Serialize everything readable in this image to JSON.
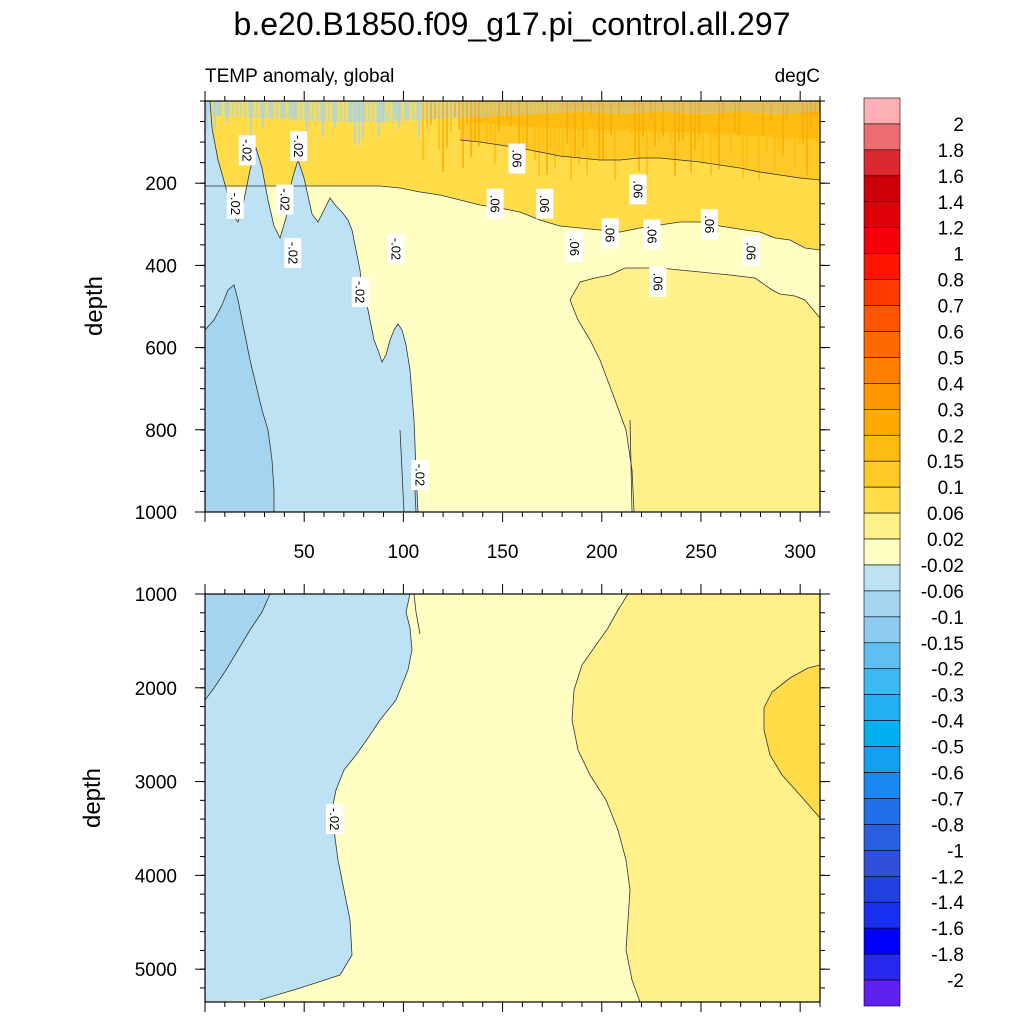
{
  "chart_data": [
    {
      "type": "contour",
      "panel": "upper",
      "title": "b.e20.B1850.f09_g17.pi_control.all.297",
      "left_subtitle": "TEMP anomaly, global",
      "right_subtitle": "degC",
      "ylabel": "depth",
      "xlim": [
        0,
        310
      ],
      "ylim": [
        0,
        1000
      ],
      "y_reversed": true,
      "x_ticks": [
        50,
        100,
        150,
        200,
        250,
        300
      ],
      "x_tick_labels": [
        "50",
        "100",
        "150",
        "200",
        "250",
        "300"
      ],
      "y_ticks": [
        200,
        400,
        600,
        800,
        1000
      ],
      "y_tick_labels": [
        "200",
        "400",
        "600",
        "800",
        "1000"
      ],
      "contour_labels": [
        {
          "text": "-.02",
          "x": 21,
          "y": 120
        },
        {
          "text": "-.02",
          "x": 47,
          "y": 110
        },
        {
          "text": "-.02",
          "x": 15,
          "y": 250
        },
        {
          "text": "-.02",
          "x": 40,
          "y": 240
        },
        {
          "text": "-.02",
          "x": 44,
          "y": 370
        },
        {
          "text": "-.02",
          "x": 78,
          "y": 465
        },
        {
          "text": "-.02",
          "x": 96,
          "y": 360
        },
        {
          "text": "-.02",
          "x": 108,
          "y": 910
        },
        {
          "text": ".06",
          "x": 157,
          "y": 140
        },
        {
          "text": ".06",
          "x": 146,
          "y": 250
        },
        {
          "text": ".06",
          "x": 171,
          "y": 250
        },
        {
          "text": ".06",
          "x": 186,
          "y": 355
        },
        {
          "text": ".06",
          "x": 204,
          "y": 322
        },
        {
          "text": ".06",
          "x": 218,
          "y": 215
        },
        {
          "text": ".06",
          "x": 225,
          "y": 325
        },
        {
          "text": ".06",
          "x": 228,
          "y": 440
        },
        {
          "text": ".06",
          "x": 254,
          "y": 300
        },
        {
          "text": ".06",
          "x": 275,
          "y": 365
        }
      ],
      "regions": [
        {
          "level": "-0.02 to 0.02",
          "x_range": [
            100,
            215
          ],
          "depth_range": [
            400,
            1000
          ]
        },
        {
          "level": "0.02 to 0.06",
          "x_range": [
            215,
            310
          ],
          "depth_range": [
            450,
            1000
          ]
        },
        {
          "level": "-0.06 to -0.02",
          "x_range": [
            0,
            100
          ],
          "depth_range": [
            250,
            1000
          ]
        },
        {
          "level": "-0.1 to -0.06",
          "x_range": [
            0,
            35
          ],
          "depth_range": [
            480,
            1000
          ]
        }
      ]
    },
    {
      "type": "contour",
      "panel": "lower",
      "ylabel": "depth",
      "xlim": [
        0,
        310
      ],
      "ylim": [
        1000,
        5350
      ],
      "y_reversed": true,
      "y_ticks": [
        1000,
        2000,
        3000,
        4000,
        5000
      ],
      "y_tick_labels": [
        "1000",
        "2000",
        "3000",
        "4000",
        "5000"
      ],
      "contour_labels": [
        {
          "text": "-.02",
          "x": 65,
          "y": 3400
        }
      ],
      "regions": [
        {
          "level": "-0.06 to -0.02",
          "x_range": [
            0,
            105
          ],
          "depth_range": [
            1000,
            5350
          ]
        },
        {
          "level": "-0.02 to 0.02",
          "x_range": [
            73,
            215
          ],
          "depth_range": [
            1000,
            5350
          ]
        },
        {
          "level": "0.02 to 0.06",
          "x_range": [
            180,
            310
          ],
          "depth_range": [
            1000,
            5350
          ]
        },
        {
          "level": "0.06 to 0.1",
          "x_range": [
            280,
            310
          ],
          "depth_range": [
            1800,
            3400
          ]
        },
        {
          "level": "-0.1 to -0.06",
          "x_range": [
            0,
            30
          ],
          "depth_range": [
            1000,
            2150
          ]
        }
      ]
    }
  ],
  "colorbar": {
    "labels": [
      "2",
      "1.8",
      "1.6",
      "1.4",
      "1.2",
      "1",
      "0.8",
      "0.7",
      "0.6",
      "0.5",
      "0.4",
      "0.3",
      "0.2",
      "0.15",
      "0.1",
      "0.06",
      "0.02",
      "-0.02",
      "-0.06",
      "-0.1",
      "-0.15",
      "-0.2",
      "-0.3",
      "-0.4",
      "-0.5",
      "-0.6",
      "-0.7",
      "-0.8",
      "-1",
      "-1.2",
      "-1.4",
      "-1.6",
      "-1.8",
      "-2"
    ],
    "colors": [
      "#ffb0b4",
      "#ec6e72",
      "#da2a30",
      "#cc0008",
      "#e00008",
      "#f40008",
      "#ff1400",
      "#ff3a00",
      "#ff5400",
      "#ff6a00",
      "#ff8000",
      "#ff9800",
      "#ffaa00",
      "#ffbc10",
      "#ffca28",
      "#ffdc48",
      "#fff08a",
      "#ffffc4",
      "#bde2f4",
      "#a4d4ef",
      "#8ecbf0",
      "#60bef0",
      "#3db8f0",
      "#22b0f0",
      "#00b0f0",
      "#14a0f0",
      "#1a88f0",
      "#2070e8",
      "#2a60e0",
      "#3050d8",
      "#2040e0",
      "#1830f0",
      "#0000ff",
      "#2828f0",
      "#6020f0"
    ]
  },
  "colors": {
    "c_m01": "#bde2f4",
    "c_m06": "#a4d4ef",
    "c_p02": "#ffffc4",
    "c_p06": "#fff08a",
    "c_p10": "#ffdc48",
    "c_p15": "#ffca28",
    "c_p20": "#ffbc10",
    "c_p30": "#ffaa00"
  }
}
